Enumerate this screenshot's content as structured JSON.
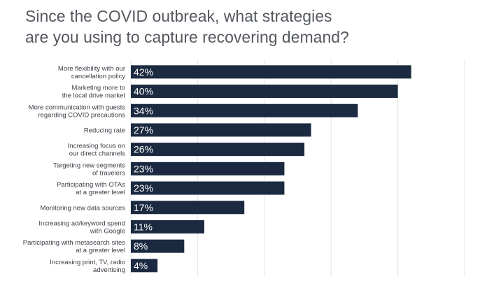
{
  "title_lines": [
    "Since the COVID outbreak, what strategies",
    "are you using to capture recovering demand?"
  ],
  "colors": {
    "bar": "#1b2a40",
    "title": "#55595f",
    "grid": "#e3e5e8"
  },
  "chart_data": {
    "type": "bar",
    "orientation": "horizontal",
    "title": "Since the COVID outbreak, what strategies are you using to capture recovering demand?",
    "categories": [
      [
        "More flexibility with our",
        "cancellation policy"
      ],
      [
        "Marketing more to",
        "the local drive market"
      ],
      [
        "More communication with guests",
        "regarding COVID precautions"
      ],
      [
        "Reducing rate"
      ],
      [
        "Increasing focus on",
        "our direct channels"
      ],
      [
        "Targeting new segments",
        "of travelers"
      ],
      [
        "Participating with OTAs",
        "at a greater level"
      ],
      [
        "Monitoring new data sources"
      ],
      [
        "Increasing ad/keyword spend",
        "with Google"
      ],
      [
        "Participating with metasearch sites",
        "at a greater level"
      ],
      [
        "Increasing print, TV, radio",
        "advertising"
      ]
    ],
    "values": [
      42,
      40,
      34,
      27,
      26,
      23,
      23,
      17,
      11,
      8,
      4
    ],
    "value_labels": [
      "42%",
      "40%",
      "34%",
      "27%",
      "26%",
      "23%",
      "23%",
      "17%",
      "11%",
      "8%",
      "4%"
    ],
    "xlim": [
      0,
      50
    ],
    "grid": true
  }
}
